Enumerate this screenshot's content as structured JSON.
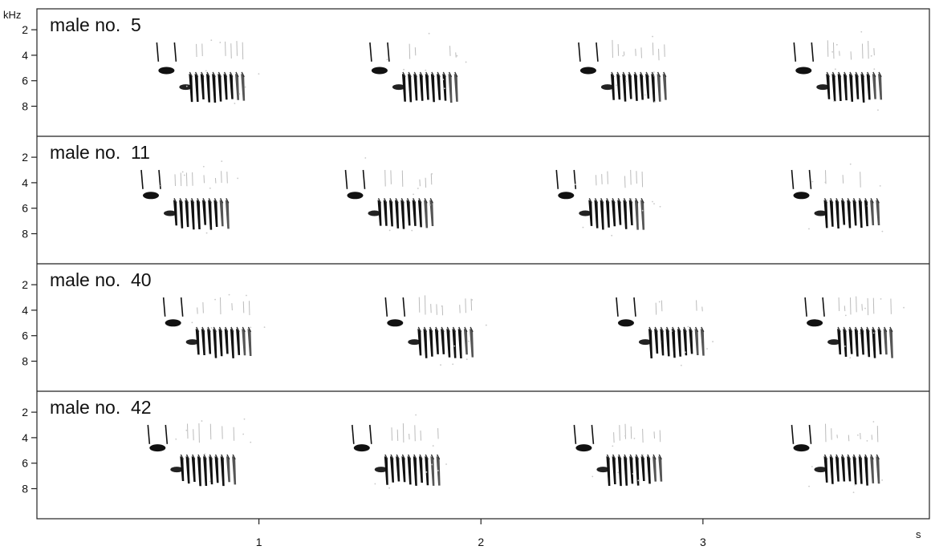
{
  "chart_data": {
    "type": "spectrogram",
    "y_unit": "kHz",
    "x_unit": "s",
    "x_ticks": [
      {
        "value": 1,
        "label": "1"
      },
      {
        "value": 2,
        "label": "2"
      },
      {
        "value": 3,
        "label": "3"
      }
    ],
    "xlim": [
      0,
      4.02
    ],
    "ylim": [
      0,
      10
    ],
    "y_ticks": [
      2,
      4,
      6,
      8
    ],
    "panels": [
      {
        "label_prefix": "male no.",
        "label_number": "5",
        "y_tick_labels": [
          "8",
          "6",
          "4",
          "2"
        ],
        "songs": [
          {
            "start": 0.54,
            "intro_freq": 4.8,
            "trill_freq": 3.9
          },
          {
            "start": 1.5,
            "intro_freq": 4.8,
            "trill_freq": 3.9
          },
          {
            "start": 2.44,
            "intro_freq": 4.8,
            "trill_freq": 3.9
          },
          {
            "start": 3.41,
            "intro_freq": 4.8,
            "trill_freq": 3.9
          }
        ]
      },
      {
        "label_prefix": "male no.",
        "label_number": "11",
        "y_tick_labels": [
          "8",
          "6",
          "4",
          "2"
        ],
        "songs": [
          {
            "start": 0.47,
            "intro_freq": 5.0,
            "trill_freq": 4.0
          },
          {
            "start": 1.39,
            "intro_freq": 5.0,
            "trill_freq": 4.0
          },
          {
            "start": 2.34,
            "intro_freq": 5.0,
            "trill_freq": 4.0
          },
          {
            "start": 3.4,
            "intro_freq": 5.0,
            "trill_freq": 4.0
          }
        ]
      },
      {
        "label_prefix": "male no.",
        "label_number": "40",
        "y_tick_labels": [
          "8",
          "6",
          "4",
          "2"
        ],
        "songs": [
          {
            "start": 0.57,
            "intro_freq": 5.0,
            "trill_freq": 3.9
          },
          {
            "start": 1.57,
            "intro_freq": 5.0,
            "trill_freq": 3.9
          },
          {
            "start": 2.61,
            "intro_freq": 5.0,
            "trill_freq": 3.9
          },
          {
            "start": 3.46,
            "intro_freq": 5.0,
            "trill_freq": 3.9
          }
        ]
      },
      {
        "label_prefix": "male no.",
        "label_number": "42",
        "y_tick_labels": [
          "8",
          "6",
          "4",
          "2"
        ],
        "songs": [
          {
            "start": 0.5,
            "intro_freq": 5.2,
            "trill_freq": 3.9
          },
          {
            "start": 1.42,
            "intro_freq": 5.2,
            "trill_freq": 3.9
          },
          {
            "start": 2.42,
            "intro_freq": 5.2,
            "trill_freq": 3.9
          },
          {
            "start": 3.4,
            "intro_freq": 5.2,
            "trill_freq": 3.9
          }
        ]
      }
    ]
  }
}
